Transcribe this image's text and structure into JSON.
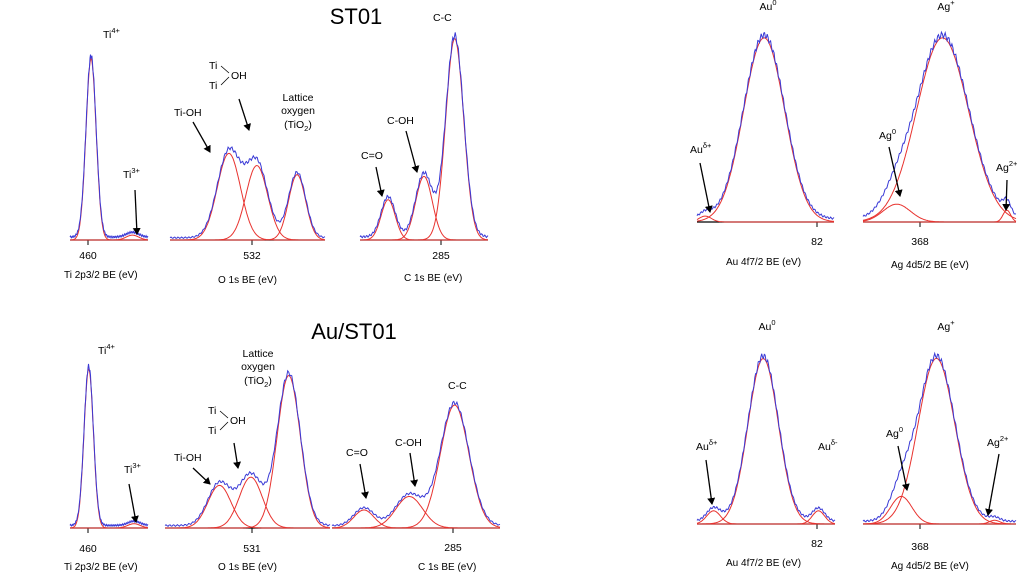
{
  "titles": {
    "top": "ST01",
    "bottom": "Au/ST01"
  },
  "colors": {
    "fit": "#e8332f",
    "envelope": "#3a3ad6",
    "axis": "#000000"
  },
  "chart_data": [
    {
      "id": "st01-ti",
      "type": "line",
      "xlabel": "Ti 2p3/2 BE (eV)",
      "tick_label": "460",
      "components": [
        {
          "label": "Ti4+",
          "base": "Ti",
          "sup": "4+",
          "center": 0.27,
          "amp": 0.93,
          "width": 0.065
        },
        {
          "label": "Ti3+",
          "base": "Ti",
          "sup": "3+",
          "center": 0.8,
          "amp": 0.025,
          "width": 0.08
        }
      ]
    },
    {
      "id": "st01-o",
      "type": "line",
      "xlabel": "O 1s BE (eV)",
      "tick_label": "532",
      "components": [
        {
          "label": "Ti-OH",
          "base": "Ti-OH",
          "center": 0.38,
          "amp": 0.57,
          "width": 0.075
        },
        {
          "label": "Ti2OH",
          "base": "Ti2OH",
          "center": 0.56,
          "amp": 0.49,
          "width": 0.07
        },
        {
          "label": "Lattice oxygen (TiO2)",
          "base": "Lattice oxygen (TiO2)",
          "center": 0.82,
          "amp": 0.43,
          "width": 0.055
        }
      ]
    },
    {
      "id": "st01-c",
      "type": "line",
      "xlabel": "C 1s BE (eV)",
      "tick_label": "285",
      "components": [
        {
          "label": "C=O",
          "base": "C=O",
          "center": 0.22,
          "amp": 0.19,
          "width": 0.055
        },
        {
          "label": "C-OH",
          "base": "C-OH",
          "center": 0.5,
          "amp": 0.3,
          "width": 0.065
        },
        {
          "label": "C-C",
          "base": "C-C",
          "center": 0.74,
          "amp": 0.95,
          "width": 0.07
        }
      ]
    },
    {
      "id": "auag1-au",
      "type": "line",
      "xlabel": "Au 4f7/2 BE (eV)",
      "tick_label": "82",
      "components": [
        {
          "label": "Auδ+",
          "base": "Au",
          "sup": "δ+",
          "center": 0.06,
          "amp": 0.03,
          "width": 0.045
        },
        {
          "label": "Au0",
          "base": "Au",
          "sup": "0",
          "center": 0.49,
          "amp": 0.93,
          "width": 0.15
        }
      ]
    },
    {
      "id": "auag1-ag",
      "type": "line",
      "xlabel": "Ag 4d5/2 BE (eV)",
      "tick_label": "368",
      "components": [
        {
          "label": "Ag0",
          "base": "Ag",
          "sup": "0",
          "center": 0.22,
          "amp": 0.09,
          "width": 0.09
        },
        {
          "label": "Ag+",
          "base": "Ag",
          "sup": "+",
          "center": 0.52,
          "amp": 0.93,
          "width": 0.17
        },
        {
          "label": "Ag2+",
          "base": "Ag",
          "sup": "2+",
          "center": 0.94,
          "amp": 0.06,
          "width": 0.025
        }
      ]
    },
    {
      "id": "auts-ti",
      "type": "line",
      "xlabel": "Ti 2p3/2 BE (eV)",
      "tick_label": "460",
      "components": [
        {
          "label": "Ti4+",
          "base": "Ti",
          "sup": "4+",
          "center": 0.24,
          "amp": 0.93,
          "width": 0.06
        },
        {
          "label": "Ti3+",
          "base": "Ti",
          "sup": "3+",
          "center": 0.82,
          "amp": 0.025,
          "width": 0.08
        }
      ]
    },
    {
      "id": "auts-o",
      "type": "line",
      "xlabel": "O 1s BE (eV)",
      "tick_label": "531",
      "components": [
        {
          "label": "Ti-OH",
          "base": "Ti-OH",
          "center": 0.33,
          "amp": 0.26,
          "width": 0.07
        },
        {
          "label": "Ti2OH",
          "base": "Ti2OH",
          "center": 0.52,
          "amp": 0.31,
          "width": 0.07
        },
        {
          "label": "Lattice oxygen (TiO2)",
          "base": "Lattice oxygen (TiO2)",
          "center": 0.75,
          "amp": 0.93,
          "width": 0.07
        }
      ]
    },
    {
      "id": "auts-c",
      "type": "line",
      "xlabel": "C 1s BE (eV)",
      "tick_label": "285",
      "components": [
        {
          "label": "C=O",
          "base": "C=O",
          "center": 0.19,
          "amp": 0.12,
          "width": 0.06
        },
        {
          "label": "C-OH",
          "base": "C-OH",
          "center": 0.46,
          "amp": 0.21,
          "width": 0.08
        },
        {
          "label": "C-C",
          "base": "C-C",
          "center": 0.73,
          "amp": 0.82,
          "width": 0.085
        }
      ]
    },
    {
      "id": "auag2-au",
      "type": "line",
      "xlabel": "Au 4f7/2 BE (eV)",
      "tick_label": "82",
      "components": [
        {
          "label": "Auδ+",
          "base": "Au",
          "sup": "δ+",
          "center": 0.12,
          "amp": 0.07,
          "width": 0.05
        },
        {
          "label": "Au0",
          "base": "Au",
          "sup": "0",
          "center": 0.48,
          "amp": 0.88,
          "width": 0.11
        },
        {
          "label": "Auδ-",
          "base": "Au",
          "sup": "δ-",
          "center": 0.88,
          "amp": 0.07,
          "width": 0.045
        }
      ]
    },
    {
      "id": "auag2-ag",
      "type": "line",
      "xlabel": "Ag 4d5/2 BE (eV)",
      "tick_label": "368",
      "components": [
        {
          "label": "Ag0",
          "base": "Ag",
          "sup": "0",
          "center": 0.25,
          "amp": 0.15,
          "width": 0.07
        },
        {
          "label": "Ag+",
          "base": "Ag",
          "sup": "+",
          "center": 0.48,
          "amp": 0.9,
          "width": 0.12
        },
        {
          "label": "Ag2+",
          "base": "Ag",
          "sup": "2+",
          "center": 0.86,
          "amp": 0.02,
          "width": 0.035
        }
      ]
    }
  ]
}
